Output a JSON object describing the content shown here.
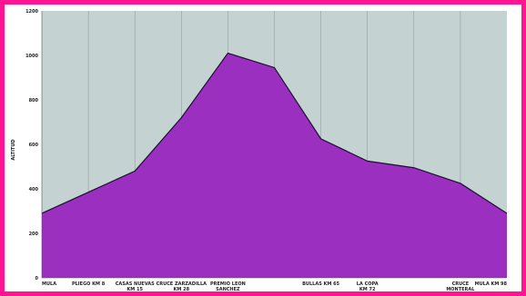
{
  "chart_data": {
    "type": "area",
    "title": "",
    "xlabel": "",
    "ylabel": "ALTITUD",
    "categories": [
      "MULA",
      "PLIEGO KM 8",
      "CASAS NUEVAS KM 15",
      "CRUCE ZARZADILLA KM 28",
      "PREMIO LEON SANCHEZ",
      "",
      "BULLAS KM 65",
      "LA COPA KM 72",
      "",
      "CRUCE MONTERAL",
      "MULA KM 98"
    ],
    "series": [
      {
        "values": [
          290,
          385,
          480,
          720,
          1010,
          945,
          625,
          525,
          495,
          425,
          290
        ]
      }
    ],
    "ylim": [
      0,
      1200
    ],
    "yticks": [
      0,
      200,
      400,
      600,
      800,
      1000,
      1200
    ],
    "grid": true,
    "colors": {
      "fill": "#9b30c0",
      "line": "#1a1030",
      "plot_bg": "#c5d2d2",
      "grid": "#8a9595",
      "border": "#ff1493"
    }
  }
}
